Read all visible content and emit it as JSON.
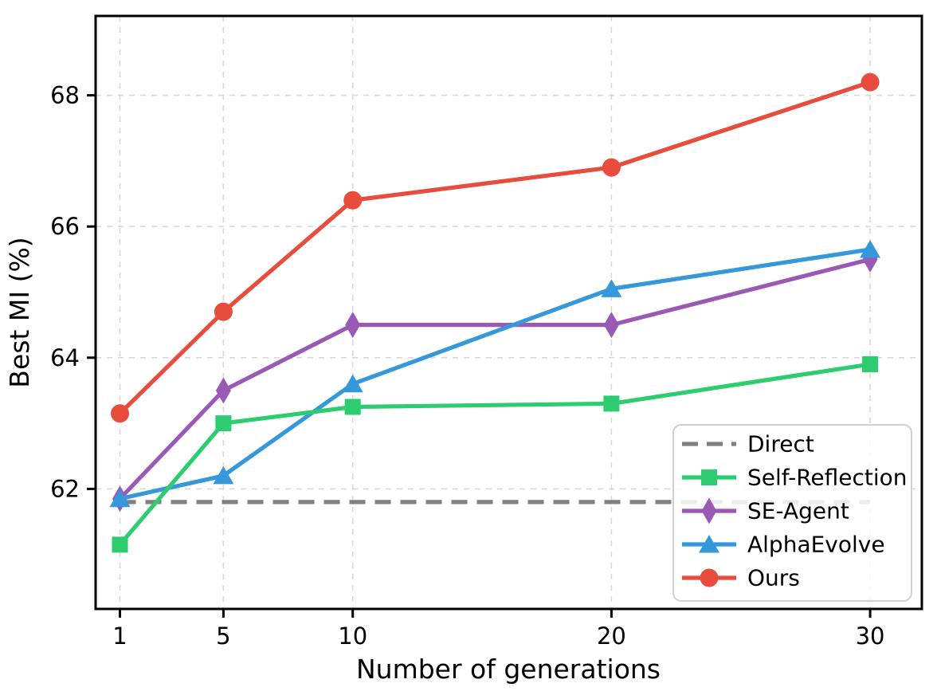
{
  "chart_data": {
    "type": "line",
    "title": "",
    "xlabel": "Number of generations",
    "ylabel": "Best MI (%)",
    "x": [
      1,
      5,
      10,
      20,
      30
    ],
    "xticks": [
      "1",
      "5",
      "10",
      "20",
      "30"
    ],
    "yticks": [
      "62",
      "64",
      "66",
      "68"
    ],
    "xtick_values": [
      1,
      5,
      10,
      20,
      30
    ],
    "ytick_values": [
      62,
      64,
      66,
      68
    ],
    "xlim": [
      0.06,
      32.0
    ],
    "ylim": [
      60.17,
      69.21
    ],
    "grid": true,
    "grid_style": "dashed",
    "legend_position": "lower right",
    "series": [
      {
        "name": "Direct",
        "color": "#808080",
        "marker": "none",
        "line_style": "dashed",
        "values": [
          61.8,
          61.8,
          61.8,
          61.8,
          61.8
        ]
      },
      {
        "name": "Self-Reflection",
        "color": "#2ecc71",
        "marker": "square",
        "line_style": "solid",
        "values": [
          61.15,
          63.0,
          63.25,
          63.3,
          63.9
        ]
      },
      {
        "name": "SE-Agent",
        "color": "#9b59b6",
        "marker": "diamond",
        "line_style": "solid",
        "values": [
          61.85,
          63.5,
          64.5,
          64.5,
          65.5
        ]
      },
      {
        "name": "AlphaEvolve",
        "color": "#3498db",
        "marker": "triangle",
        "line_style": "solid",
        "values": [
          61.85,
          62.2,
          63.6,
          65.05,
          65.65
        ]
      },
      {
        "name": "Ours",
        "color": "#e74c3c",
        "marker": "circle",
        "line_style": "solid",
        "values": [
          63.15,
          64.7,
          66.4,
          66.9,
          68.2
        ]
      }
    ],
    "draw_order": [
      "Direct",
      "SE-Agent",
      "AlphaEvolve",
      "Self-Reflection",
      "Ours"
    ],
    "colors": {
      "frame": "#000000",
      "gridline": "#d9d9d9",
      "legend_border": "#d0d0d0",
      "legend_background": "rgba(255,255,255,0.85)"
    }
  }
}
